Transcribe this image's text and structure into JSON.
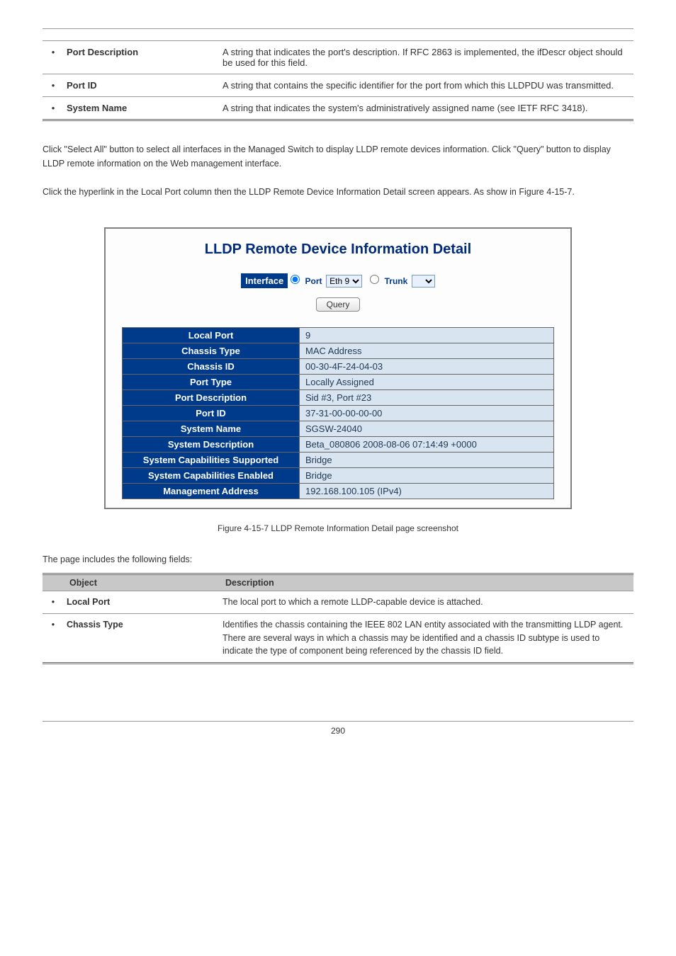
{
  "top_rows": [
    {
      "label": "",
      "desc": ""
    },
    {
      "label": "Port Description",
      "desc": "A string that indicates the port's description. If RFC 2863 is implemented, the ifDescr object should be used for this field."
    },
    {
      "label": "Port ID",
      "desc": "A string that contains the specific identifier for the port from which this LLDPDU was transmitted."
    },
    {
      "label": "System Name",
      "desc": "A string that indicates the system's administratively assigned name (see IETF RFC 3418)."
    }
  ],
  "intro_p1": "Click \"Select All\" button to select all interfaces in the Managed Switch to display LLDP remote devices information. Click \"Query\" button to display LLDP remote information on the Web management interface.",
  "intro_p2": "Click the hyperlink in the Local Port column then the LLDP Remote Device Information Detail screen appears. As show in Figure 4-15-7.",
  "screenshot": {
    "title": "LLDP Remote Device Information Detail",
    "interface_label": "Interface",
    "port_label": "Port",
    "trunk_label": "Trunk",
    "port_value": "Eth 9",
    "query_btn": "Query",
    "rows": [
      {
        "k": "Local Port",
        "v": "9"
      },
      {
        "k": "Chassis Type",
        "v": "MAC Address"
      },
      {
        "k": "Chassis ID",
        "v": "00-30-4F-24-04-03"
      },
      {
        "k": "Port Type",
        "v": "Locally Assigned"
      },
      {
        "k": "Port Description",
        "v": "Sid #3, Port #23"
      },
      {
        "k": "Port ID",
        "v": "37-31-00-00-00-00"
      },
      {
        "k": "System Name",
        "v": "SGSW-24040"
      },
      {
        "k": "System Description",
        "v": "Beta_080806 2008-08-06 07:14:49 +0000"
      },
      {
        "k": "System Capabilities Supported",
        "v": "Bridge"
      },
      {
        "k": "System Capabilities Enabled",
        "v": "Bridge"
      },
      {
        "k": "Management Address",
        "v": "192.168.100.105 (IPv4)"
      }
    ]
  },
  "caption": "Figure 4-15-7 LLDP Remote Information Detail page screenshot",
  "page_includes": "The page includes the following fields:",
  "bot_header_obj": "Object",
  "bot_header_desc": "Description",
  "bot_rows": [
    {
      "label": "Local Port",
      "desc": "The local port to which a remote LLDP-capable device is attached."
    },
    {
      "label": "Chassis Type",
      "desc": "Identifies the chassis containing the IEEE 802 LAN entity associated with the transmitting LLDP agent. There are several ways in which a chassis may be identified and a chassis ID subtype is used to indicate the type of component being referenced by the chassis ID field."
    }
  ],
  "page_number": "290"
}
